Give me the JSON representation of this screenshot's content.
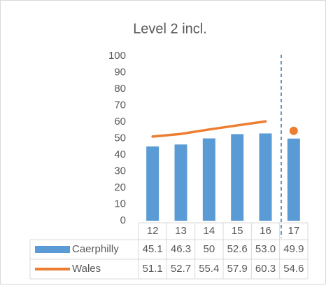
{
  "chart_data": {
    "type": "bar",
    "title": "Level 2 incl.",
    "categories": [
      "12",
      "13",
      "14",
      "15",
      "16",
      "17"
    ],
    "series": [
      {
        "name": "Caerphilly",
        "type": "bar",
        "color": "#5b9bd5",
        "values": [
          45.1,
          46.3,
          50,
          52.6,
          53.0,
          49.9
        ],
        "value_labels": [
          "45.1",
          "46.3",
          "50",
          "52.6",
          "53.0",
          "49.9"
        ]
      },
      {
        "name": "Wales",
        "type": "line",
        "color": "#ed7d31",
        "values": [
          51.1,
          52.7,
          55.4,
          57.9,
          60.3,
          54.6
        ]
      }
    ],
    "ylim": [
      0,
      100
    ],
    "yticks": [
      0,
      10,
      20,
      30,
      40,
      50,
      60,
      70,
      80,
      90,
      100
    ],
    "grid": false
  }
}
